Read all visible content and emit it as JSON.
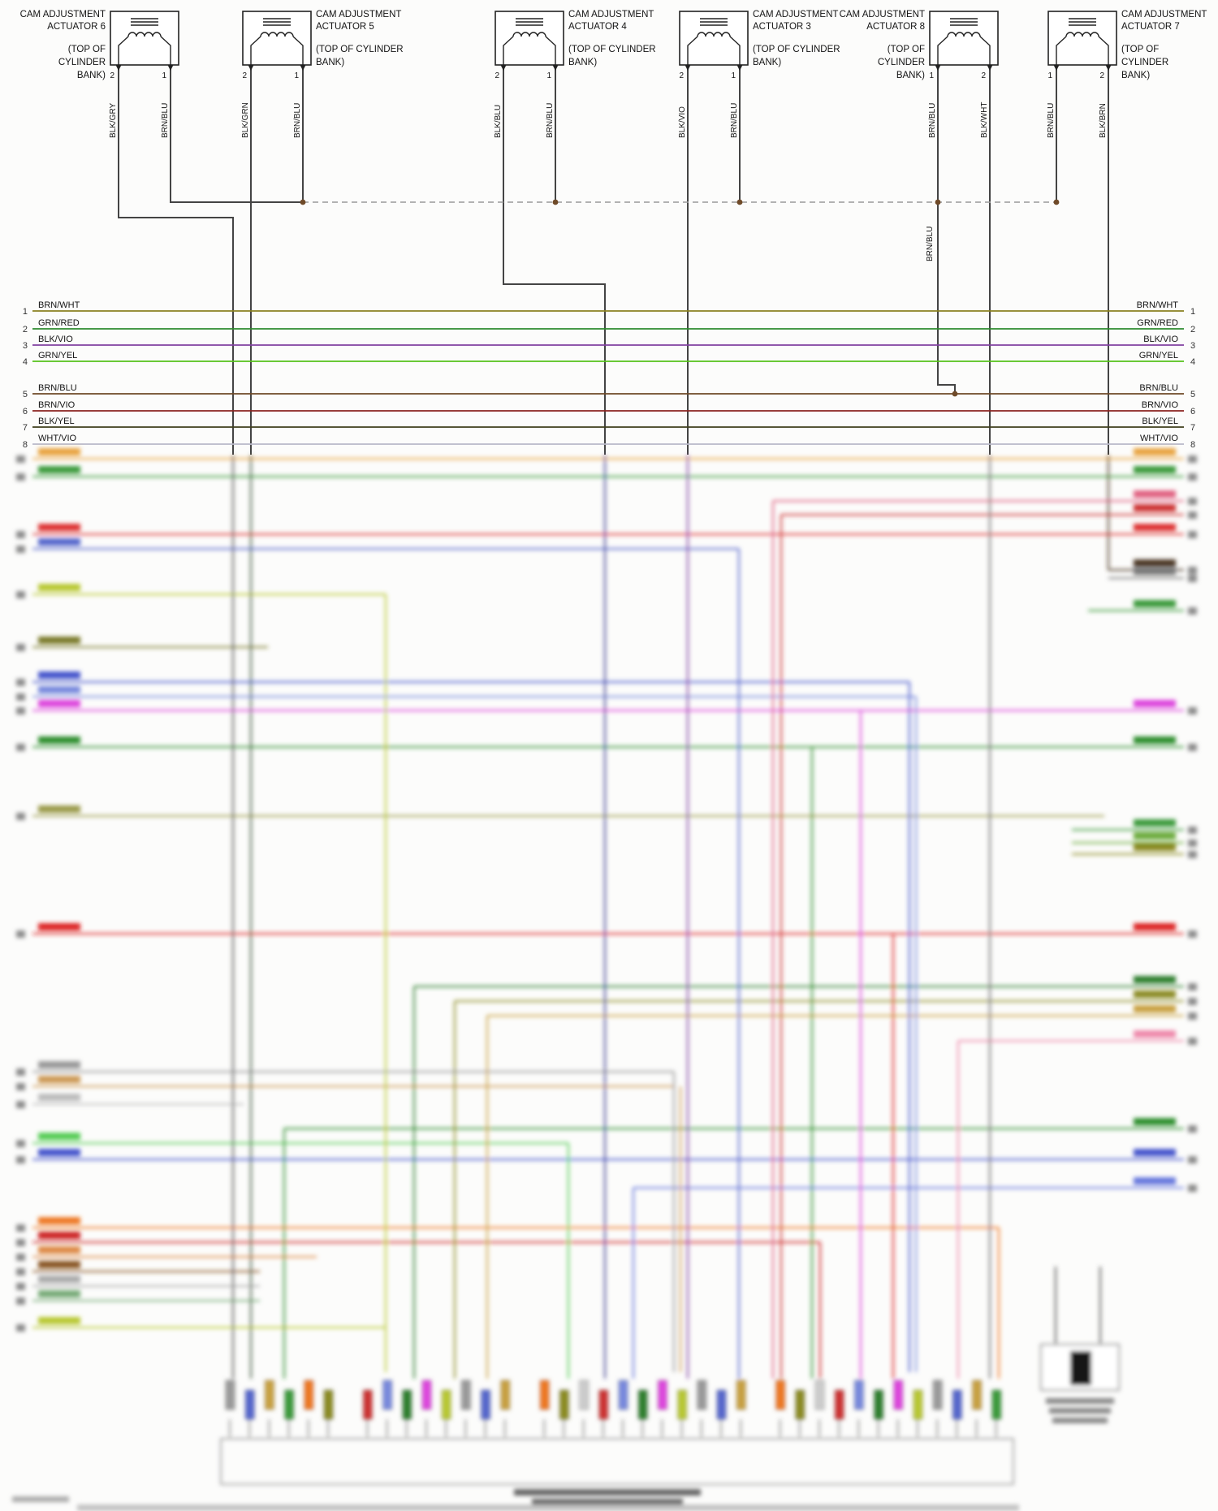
{
  "actuators": [
    {
      "title1": "CAM ADJUSTMENT",
      "title2": "ACTUATOR 6",
      "loc": [
        "(TOP OF",
        "CYLINDER",
        "BANK)"
      ],
      "pins": [
        {
          "number": "2",
          "wire": "BLK/GRY"
        },
        {
          "number": "1",
          "wire": "BRN/BLU"
        }
      ]
    },
    {
      "title1": "CAM ADJUSTMENT",
      "title2": "ACTUATOR 5",
      "loc": [
        "(TOP OF CYLINDER",
        "BANK)"
      ],
      "pins": [
        {
          "number": "2",
          "wire": "BLK/GRN"
        },
        {
          "number": "1",
          "wire": "BRN/BLU"
        }
      ]
    },
    {
      "title1": "CAM ADJUSTMENT",
      "title2": "ACTUATOR 4",
      "loc": [
        "(TOP OF CYLINDER",
        "BANK)"
      ],
      "pins": [
        {
          "number": "2",
          "wire": "BLK/BLU"
        },
        {
          "number": "1",
          "wire": "BRN/BLU"
        }
      ]
    },
    {
      "title1": "CAM ADJUSTMENT",
      "title2": "ACTUATOR 3",
      "loc": [
        "(TOP OF CYLINDER",
        "BANK)"
      ],
      "pins": [
        {
          "number": "2",
          "wire": "BLK/VIO"
        },
        {
          "number": "1",
          "wire": "BRN/BLU"
        }
      ]
    },
    {
      "title1": "CAM ADJUSTMENT",
      "title2": "ACTUATOR 8",
      "loc": [
        "(TOP OF",
        "CYLINDER",
        "BANK)"
      ],
      "pins": [
        {
          "number": "1",
          "wire": "BRN/BLU"
        },
        {
          "number": "2",
          "wire": "BLK/WHT"
        }
      ]
    },
    {
      "title1": "CAM ADJUSTMENT",
      "title2": "ACTUATOR 7",
      "loc": [
        "(TOP OF",
        "CYLINDER",
        "BANK)"
      ],
      "pins": [
        {
          "number": "1",
          "wire": "BRN/BLU"
        },
        {
          "number": "2",
          "wire": "BLK/BRN"
        }
      ]
    }
  ],
  "splice": {
    "label": "BRN/BLU"
  },
  "rows": [
    {
      "number": "1",
      "wire": "BRN/WHT"
    },
    {
      "number": "2",
      "wire": "GRN/RED"
    },
    {
      "number": "3",
      "wire": "BLK/VIO"
    },
    {
      "number": "4",
      "wire": "GRN/YEL"
    },
    {
      "number": "5",
      "wire": "BRN/BLU"
    },
    {
      "number": "6",
      "wire": "BRN/VIO"
    },
    {
      "number": "7",
      "wire": "BLK/YEL"
    },
    {
      "number": "8",
      "wire": "WHT/VIO"
    }
  ],
  "wire_colors": {
    "BLK_GRY": "#5a5a5a",
    "BLK_GRN": "#3f5a3f",
    "BLK_BLU": "#3d3d8f",
    "BLK_VIO": "#8040a0",
    "BLK_WHT": "#6e6e6e",
    "BLK_BRN": "#4a3520",
    "BRN_BLU": "#6f4a28",
    "BRN_WHT": "#8a8020",
    "GRN_RED": "#2e8b2e",
    "GRN_YEL": "#55c21a",
    "BRN_VIO": "#8b2320",
    "BLK_YEL": "#3f3f1d",
    "WHT_VIO": "#b9b9c9"
  }
}
